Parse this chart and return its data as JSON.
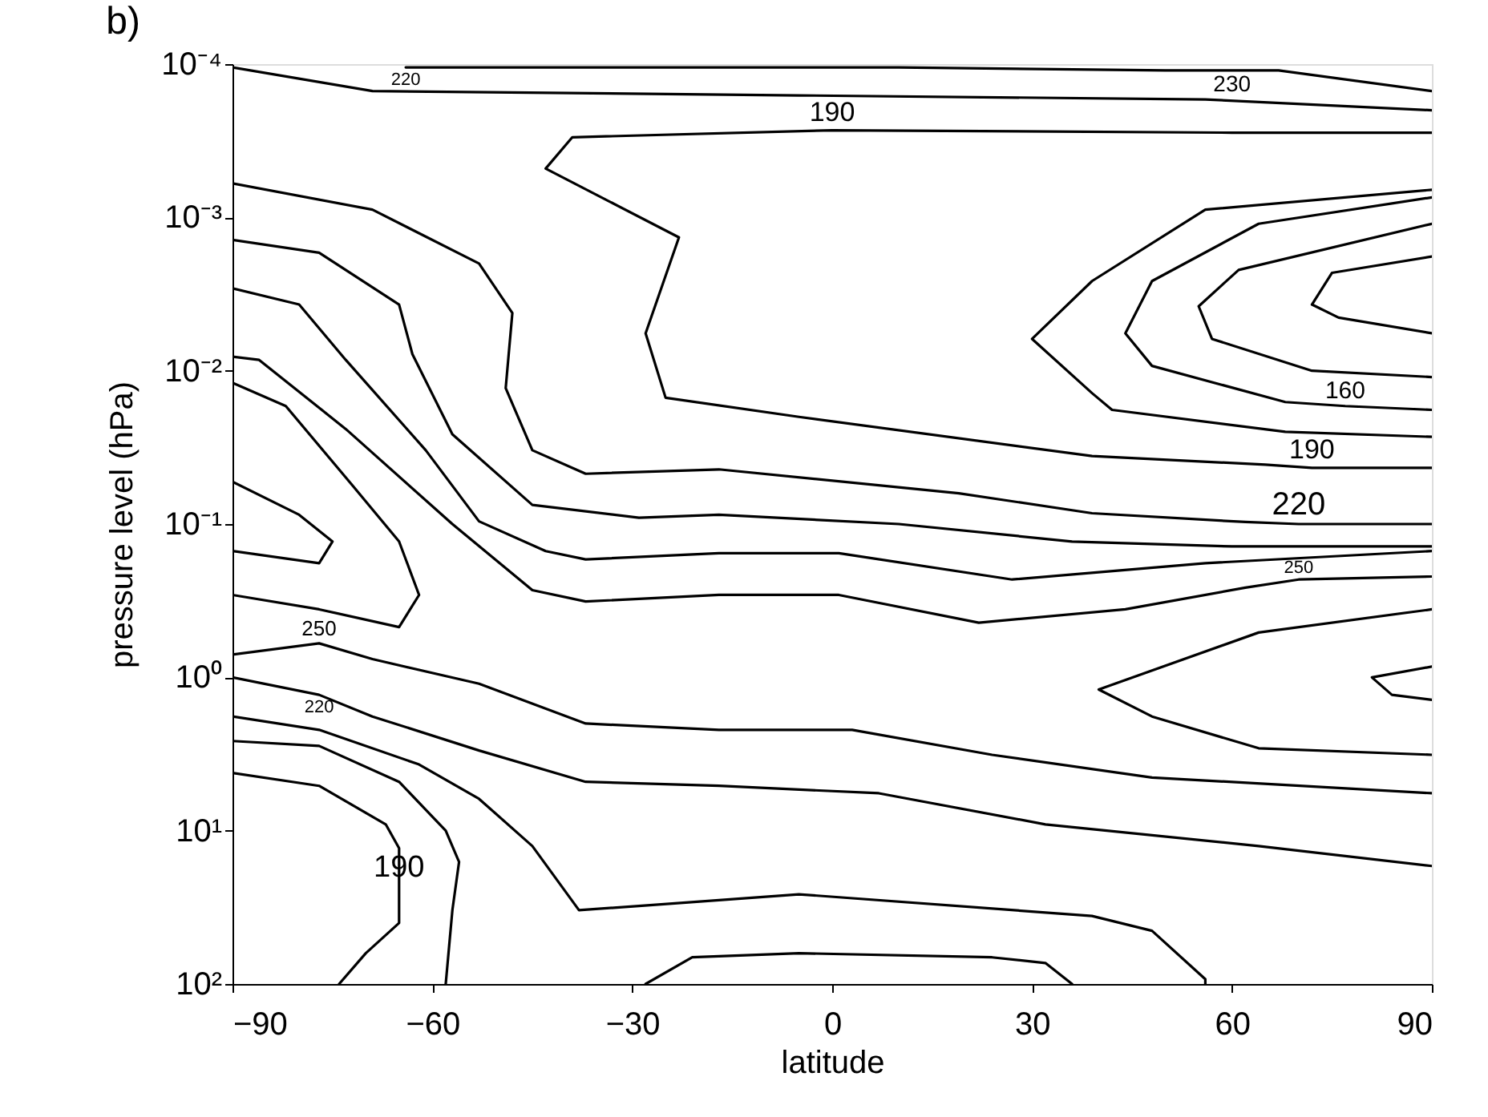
{
  "chart_data": {
    "type": "line",
    "title": "b)",
    "xlabel": "latitude",
    "ylabel": "pressure level (hPa)",
    "xlim": [
      -90,
      90
    ],
    "ylim": [
      100,
      0.0001
    ],
    "log": true,
    "grid": false,
    "xticks": [
      -90,
      -60,
      -30,
      0,
      30,
      60,
      90
    ],
    "yticks": [
      {
        "value": 0.0001,
        "label": "10⁻⁴"
      },
      {
        "value": 0.001,
        "label": "10⁻³"
      },
      {
        "value": 0.01,
        "label": "10⁻²"
      },
      {
        "value": 0.1,
        "label": "10⁻¹"
      },
      {
        "value": 1,
        "label": "10⁰"
      },
      {
        "value": 10,
        "label": "10¹"
      },
      {
        "value": 100,
        "label": "10²"
      }
    ],
    "series": [
      {
        "color": "#000000",
        "x": [
          -90,
          -69,
          -5,
          56,
          90
        ],
        "values": [
          0.000105,
          0.00015,
          0.00016,
          0.00017,
          0.0002
        ]
      },
      {
        "color": "#000000",
        "x": [
          -64,
          -50,
          -20,
          10,
          50,
          60,
          67,
          90
        ],
        "values": [
          0.000105,
          0.000105,
          0.000105,
          0.000105,
          0.00011,
          0.00011,
          0.00011,
          0.00015
        ]
      },
      {
        "color": "#000000",
        "x": [
          90,
          60,
          0,
          -39,
          -43,
          -23,
          -28,
          -25,
          -5,
          39,
          65,
          72,
          79,
          90
        ],
        "values": [
          0.00028,
          0.00028,
          0.00027,
          0.0003,
          0.00048,
          0.00135,
          0.0057,
          0.015,
          0.02,
          0.036,
          0.041,
          0.043,
          0.043,
          0.043
        ]
      },
      {
        "color": "#000000",
        "x": [
          90,
          56,
          39,
          30,
          39,
          42,
          68,
          90
        ],
        "values": [
          0.00066,
          0.00089,
          0.0026,
          0.0062,
          0.014,
          0.018,
          0.025,
          0.027
        ]
      },
      {
        "color": "#000000",
        "x": [
          90,
          64,
          48,
          44,
          48,
          68,
          77,
          90
        ],
        "values": [
          0.00074,
          0.0011,
          0.0026,
          0.0057,
          0.0093,
          0.016,
          0.017,
          0.018
        ]
      },
      {
        "color": "#000000",
        "x": [
          90,
          61,
          55,
          57,
          72,
          90
        ],
        "values": [
          0.0011,
          0.0022,
          0.0038,
          0.0062,
          0.01,
          0.011
        ]
      },
      {
        "color": "#000000",
        "x": [
          90,
          75,
          72,
          76,
          90
        ],
        "values": [
          0.0018,
          0.0023,
          0.0037,
          0.0045,
          0.0057
        ]
      },
      {
        "color": "#000000",
        "x": [
          -90,
          -69,
          -53,
          -48,
          -49,
          -45,
          -37,
          -17,
          19,
          39,
          62,
          70,
          90
        ],
        "values": [
          0.0006,
          0.00089,
          0.002,
          0.0042,
          0.013,
          0.033,
          0.047,
          0.044,
          0.063,
          0.085,
          0.097,
          0.1,
          0.1
        ]
      },
      {
        "color": "#000000",
        "x": [
          -90,
          -77,
          -65,
          -63,
          -57,
          -45,
          -29,
          -17,
          10,
          36,
          60,
          90
        ],
        "values": [
          0.0014,
          0.0017,
          0.0037,
          0.0078,
          0.026,
          0.075,
          0.091,
          0.087,
          0.1,
          0.13,
          0.14,
          0.14
        ]
      },
      {
        "color": "#000000",
        "x": [
          -90,
          -80,
          -73,
          -61,
          -53,
          -43,
          -37,
          -17,
          1,
          27,
          56,
          90
        ],
        "values": [
          0.0029,
          0.0037,
          0.0085,
          0.033,
          0.096,
          0.15,
          0.17,
          0.155,
          0.155,
          0.23,
          0.18,
          0.15
        ]
      },
      {
        "color": "#000000",
        "x": [
          -90,
          -86,
          -73,
          -57,
          -45,
          -37,
          -17,
          1,
          22,
          44,
          62,
          70,
          90
        ],
        "values": [
          0.0081,
          0.0085,
          0.024,
          0.1,
          0.27,
          0.32,
          0.29,
          0.29,
          0.44,
          0.36,
          0.26,
          0.23,
          0.22
        ]
      },
      {
        "color": "#000000",
        "x": [
          -90,
          -80,
          -75,
          -77,
          -90
        ],
        "values": [
          0.053,
          0.087,
          0.13,
          0.18,
          0.15
        ]
      },
      {
        "color": "#000000",
        "x": [
          -90,
          -77,
          -65,
          -62,
          -65,
          -72,
          -82,
          -90
        ],
        "values": [
          0.29,
          0.36,
          0.47,
          0.29,
          0.13,
          0.056,
          0.017,
          0.012
        ]
      },
      {
        "color": "#000000",
        "x": [
          -90,
          -77,
          -69,
          -53,
          -37,
          -17,
          3,
          24,
          48,
          90
        ],
        "values": [
          0.71,
          0.6,
          0.76,
          1.1,
          2.0,
          2.2,
          2.2,
          3.2,
          4.5,
          5.7
        ]
      },
      {
        "color": "#000000",
        "x": [
          90,
          64,
          40,
          48,
          64,
          90
        ],
        "values": [
          0.36,
          0.51,
          1.2,
          1.8,
          2.9,
          3.2
        ]
      },
      {
        "color": "#000000",
        "x": [
          90,
          81,
          84,
          90
        ],
        "values": [
          0.85,
          1.0,
          1.3,
          1.4
        ]
      },
      {
        "color": "#000000",
        "x": [
          -90,
          -77,
          -69,
          -53,
          -37,
          -17,
          7,
          32,
          64,
          90
        ],
        "values": [
          1.0,
          1.3,
          1.8,
          3.0,
          4.8,
          5.1,
          5.7,
          9.1,
          12.6,
          17
        ]
      },
      {
        "color": "#000000",
        "x": [
          -90,
          -77,
          -62,
          -53,
          -45,
          -38,
          -29,
          -5,
          39,
          48,
          56,
          56
        ],
        "values": [
          1.8,
          2.2,
          3.7,
          6.2,
          12.6,
          33,
          31,
          26,
          36,
          45,
          93,
          100
        ]
      },
      {
        "color": "#000000",
        "x": [
          -90,
          -77,
          -65,
          -58,
          -56,
          -57,
          -58
        ],
        "values": [
          2.6,
          2.8,
          4.8,
          10,
          16,
          33,
          100
        ]
      },
      {
        "color": "#000000",
        "x": [
          -90,
          -77,
          -67,
          -65,
          -65,
          -65,
          -70,
          -74
        ],
        "values": [
          4.2,
          5.1,
          9.1,
          13,
          23,
          40,
          63,
          100
        ]
      },
      {
        "color": "#000000",
        "x": [
          -28,
          -21,
          -5,
          24,
          32,
          36
        ],
        "values": [
          100,
          67,
          63,
          67,
          73,
          100
        ]
      }
    ],
    "annotations": [
      {
        "text": "220",
        "x": -64,
        "y": 0.000105
      },
      {
        "text": "230",
        "x": 60,
        "y": 0.00011
      },
      {
        "text": "190",
        "x": 0,
        "y": 0.00027
      },
      {
        "text": "160",
        "x": 77,
        "y": 0.017
      },
      {
        "text": "190",
        "x": 72,
        "y": 0.043
      },
      {
        "text": "220",
        "x": 70,
        "y": 0.1
      },
      {
        "text": "250",
        "x": 70,
        "y": 0.23
      },
      {
        "text": "250",
        "x": -77,
        "y": 0.6
      },
      {
        "text": "220",
        "x": -77,
        "y": 1.3
      },
      {
        "text": "190",
        "x": -65,
        "y": 23
      }
    ]
  }
}
